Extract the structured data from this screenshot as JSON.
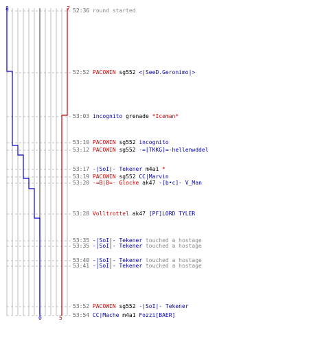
{
  "team_counts": {
    "blue_start": "8",
    "red_start": "7",
    "blue_end": "0",
    "red_end": "5"
  },
  "colors": {
    "blue": "#0000cc",
    "red": "#cc0000",
    "grid": "#bbbbbb",
    "grid_dark": "#555555",
    "time": "#666666",
    "muted": "#888888"
  },
  "events": [
    {
      "time": "52:36",
      "parts": [
        {
          "text": "round started",
          "c": "g"
        }
      ]
    },
    {
      "time": "52:52",
      "parts": [
        {
          "text": "PACOWIN",
          "c": "r"
        },
        {
          "text": " sg552 ",
          "c": "k"
        },
        {
          "text": "<|SeeD.Geronimo|>",
          "c": "b"
        }
      ]
    },
    {
      "time": "53:03",
      "parts": [
        {
          "text": "incognito",
          "c": "b"
        },
        {
          "text": " grenade ",
          "c": "k"
        },
        {
          "text": "*Iceman*",
          "c": "r"
        }
      ]
    },
    {
      "time": "53:10",
      "parts": [
        {
          "text": "PACOWIN",
          "c": "r"
        },
        {
          "text": " sg552 ",
          "c": "k"
        },
        {
          "text": "incognito",
          "c": "b"
        }
      ]
    },
    {
      "time": "53:12",
      "parts": [
        {
          "text": "PACOWIN",
          "c": "r"
        },
        {
          "text": " sg552 ",
          "c": "k"
        },
        {
          "text": "-=[TKKG]=-hellenwddel",
          "c": "b"
        }
      ]
    },
    {
      "time": "53:17",
      "parts": [
        {
          "text": "-|SoI|- Tekener",
          "c": "b"
        },
        {
          "text": " m4a1 ",
          "c": "k"
        },
        {
          "text": "*",
          "c": "r"
        }
      ]
    },
    {
      "time": "53:19",
      "parts": [
        {
          "text": "PACOWIN",
          "c": "r"
        },
        {
          "text": " sg552 ",
          "c": "k"
        },
        {
          "text": "CC|Marvin",
          "c": "b"
        }
      ]
    },
    {
      "time": "53:20",
      "parts": [
        {
          "text": "-=B|B=- Glocke",
          "c": "r"
        },
        {
          "text": " ak47 ",
          "c": "k"
        },
        {
          "text": "-[b•c]- V_Man",
          "c": "b"
        }
      ]
    },
    {
      "time": "53:28",
      "parts": [
        {
          "text": "Volltrottel",
          "c": "r"
        },
        {
          "text": " ak47 ",
          "c": "k"
        },
        {
          "text": "[PF]LORD TYLER",
          "c": "b"
        }
      ]
    },
    {
      "time": "53:35",
      "parts": [
        {
          "text": "-|SoI|- Tekener",
          "c": "b"
        },
        {
          "text": " touched a hostage",
          "c": "g"
        }
      ]
    },
    {
      "time": "53:35",
      "parts": [
        {
          "text": "-|SoI|- Tekener",
          "c": "b"
        },
        {
          "text": " touched a hostage",
          "c": "g"
        }
      ]
    },
    {
      "time": "53:40",
      "parts": [
        {
          "text": "-|SoI|- Tekener",
          "c": "b"
        },
        {
          "text": " touched a hostage",
          "c": "g"
        }
      ]
    },
    {
      "time": "53:41",
      "parts": [
        {
          "text": "-|SoI|- Tekener",
          "c": "b"
        },
        {
          "text": " touched a hostage",
          "c": "g"
        }
      ]
    },
    {
      "time": "53:52",
      "parts": [
        {
          "text": "PACOWIN",
          "c": "r"
        },
        {
          "text": " sg552 ",
          "c": "k"
        },
        {
          "text": "-|SoI|- Tekener",
          "c": "b"
        }
      ]
    },
    {
      "time": "53:54",
      "parts": [
        {
          "text": "CC|Mache",
          "c": "b"
        },
        {
          "text": " m4a1 ",
          "c": "k"
        },
        {
          "text": "Fozzi[BAER]",
          "c": "b"
        }
      ]
    }
  ]
}
